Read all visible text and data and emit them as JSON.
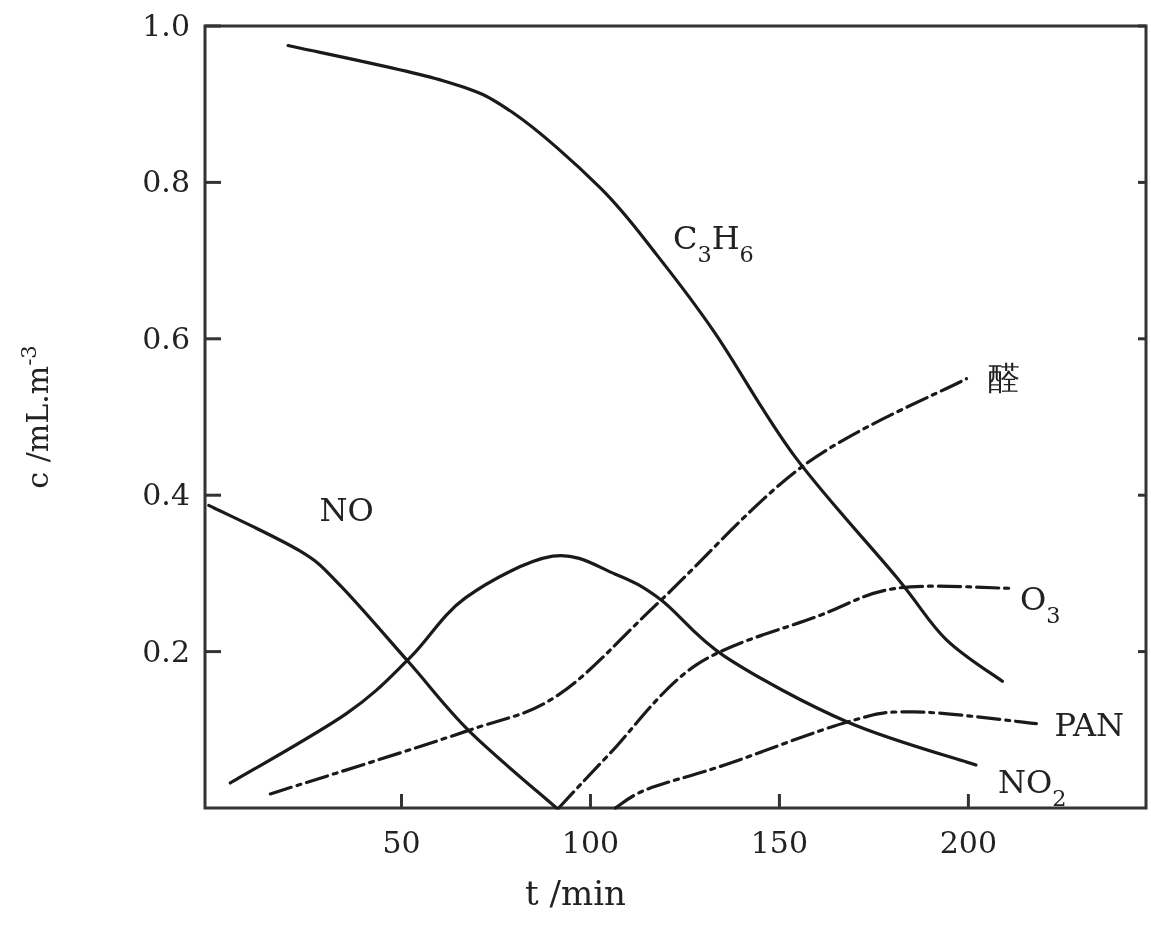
{
  "chart_data": {
    "type": "line",
    "xlabel": "t /min",
    "ylabel": "c /mL.m$^{-3}$",
    "xlim": [
      -2,
      247
    ],
    "ylim": [
      0,
      1
    ],
    "xticks": [
      50,
      100,
      150,
      200
    ],
    "yticks": [
      0.2,
      0.4,
      0.6,
      0.8,
      {
        "value": 1,
        "label": "1.0"
      }
    ],
    "series": [
      {
        "name": "C$_{3}$H$_{6}$",
        "color": "#1a1a1a",
        "line_style": "solid",
        "x": [
          20,
          61,
          79.5,
          102.6,
          117.6,
          133,
          154,
          181,
          194,
          209
        ],
        "values": [
          0.975,
          0.93,
          0.889,
          0.793,
          0.707,
          0.607,
          0.45,
          0.295,
          0.216,
          0.162
        ]
      },
      {
        "name": "NO",
        "color": "#1a1a1a",
        "line_style": "solid",
        "x": [
          -1,
          23,
          33.7,
          52,
          68,
          91
        ],
        "values": [
          0.387,
          0.329,
          0.285,
          0.186,
          0.098,
          0
        ]
      },
      {
        "name": "NO$_{2}$",
        "color": "#1a1a1a",
        "line_style": "solid",
        "x": [
          4.7,
          35.5,
          52,
          67,
          90,
          106.6,
          118.7,
          135.5,
          168,
          202
        ],
        "values": [
          0.032,
          0.121,
          0.191,
          0.269,
          0.322,
          0.299,
          0.266,
          0.194,
          0.11,
          0.055
        ]
      },
      {
        "name": "醛",
        "color": "#1a1a1a",
        "line_style": "dashed",
        "x": [
          15.3,
          67,
          91.6,
          118.7,
          157,
          199.5
        ],
        "values": [
          0.018,
          0.098,
          0.145,
          0.266,
          0.44,
          0.549
        ]
      },
      {
        "name": "O$_{3}$",
        "color": "#1a1a1a",
        "line_style": "dashed",
        "x": [
          91.6,
          105,
          128,
          160,
          181,
          211
        ],
        "values": [
          0,
          0.069,
          0.183,
          0.245,
          0.281,
          0.281
        ]
      },
      {
        "name": "PAN",
        "color": "#1a1a1a",
        "line_style": "dashed",
        "x": [
          106.6,
          115,
          135.5,
          168,
          185.5,
          218
        ],
        "values": [
          0,
          0.024,
          0.055,
          0.11,
          0.123,
          0.108
        ]
      }
    ]
  }
}
